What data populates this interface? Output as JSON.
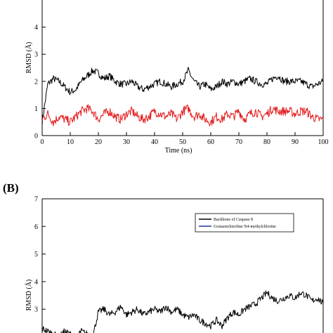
{
  "chart_data": [
    {
      "panel": "A",
      "panel_label": "",
      "type": "line",
      "xlabel": "Time (ns)",
      "ylabel": "RMSD (Å)",
      "xlim": [
        0,
        100
      ],
      "ylim": [
        0,
        5
      ],
      "xticks": [
        0,
        10,
        20,
        30,
        40,
        50,
        60,
        70,
        80,
        90,
        100
      ],
      "yticks": [
        0,
        1,
        2,
        3,
        4
      ],
      "grid": false,
      "series": [
        {
          "color": "#000000",
          "x": [
            0,
            2,
            4,
            6,
            8,
            10,
            12,
            14,
            16,
            18,
            20,
            22,
            24,
            26,
            28,
            30,
            32,
            34,
            36,
            38,
            40,
            42,
            44,
            46,
            48,
            50,
            52,
            54,
            56,
            58,
            60,
            62,
            64,
            66,
            68,
            70,
            72,
            74,
            76,
            78,
            80,
            82,
            84,
            86,
            88,
            90,
            92,
            94,
            96,
            98,
            100
          ],
          "y": [
            0.5,
            1.9,
            2.1,
            2.0,
            1.8,
            1.6,
            1.7,
            2.0,
            2.2,
            2.4,
            2.3,
            2.1,
            2.2,
            2.0,
            1.9,
            1.9,
            2.0,
            1.8,
            1.7,
            1.8,
            1.9,
            2.0,
            1.9,
            1.8,
            1.9,
            2.0,
            2.4,
            2.0,
            1.8,
            1.9,
            1.7,
            1.8,
            2.0,
            1.9,
            2.0,
            1.9,
            2.0,
            2.1,
            2.0,
            1.9,
            1.9,
            2.1,
            2.2,
            2.0,
            2.0,
            2.0,
            2.0,
            1.9,
            1.8,
            1.9,
            2.0
          ]
        },
        {
          "color": "#e31a1c",
          "x": [
            0,
            2,
            4,
            6,
            8,
            10,
            12,
            14,
            16,
            18,
            20,
            22,
            24,
            26,
            28,
            30,
            32,
            34,
            36,
            38,
            40,
            42,
            44,
            46,
            48,
            50,
            52,
            54,
            56,
            58,
            60,
            62,
            64,
            66,
            68,
            70,
            72,
            74,
            76,
            78,
            80,
            82,
            84,
            86,
            88,
            90,
            92,
            94,
            96,
            98,
            100
          ],
          "y": [
            0.6,
            0.8,
            0.5,
            0.7,
            0.6,
            0.5,
            0.7,
            0.9,
            1.0,
            0.9,
            0.6,
            0.8,
            0.9,
            0.7,
            0.6,
            0.8,
            0.9,
            0.7,
            0.6,
            0.7,
            0.9,
            0.8,
            0.7,
            0.8,
            0.6,
            0.9,
            1.0,
            0.7,
            0.8,
            0.6,
            0.5,
            0.7,
            0.6,
            0.8,
            0.7,
            0.9,
            0.6,
            0.8,
            0.9,
            0.7,
            0.8,
            1.0,
            0.9,
            0.9,
            0.9,
            0.8,
            0.9,
            0.9,
            0.7,
            0.6,
            0.6
          ]
        }
      ]
    },
    {
      "panel": "B",
      "panel_label": "(B)",
      "type": "line",
      "xlabel": "",
      "ylabel": "RMSD (Å)",
      "xlim": [
        0,
        100
      ],
      "ylim": [
        0,
        7
      ],
      "yticks": [
        3,
        4,
        5,
        6,
        7
      ],
      "grid": false,
      "legend_position": "top-right",
      "series": [
        {
          "name": "Backbone of Caspase 8",
          "color": "#000000",
          "x": [
            0,
            2,
            4,
            6,
            8,
            10,
            12,
            14,
            16,
            18,
            20,
            22,
            24,
            26,
            28,
            30,
            32,
            34,
            36,
            38,
            40,
            42,
            44,
            46,
            48,
            50,
            52,
            54,
            56,
            58,
            60,
            62,
            64,
            66,
            68,
            70,
            72,
            74,
            76,
            78,
            80,
            82,
            84,
            86,
            88,
            90,
            92,
            94,
            96,
            98,
            100
          ],
          "y": [
            2.3,
            2.2,
            2.1,
            2.0,
            2.2,
            2.1,
            2.0,
            2.2,
            2.1,
            2.0,
            2.9,
            3.0,
            2.8,
            2.9,
            3.1,
            2.8,
            2.9,
            3.0,
            2.8,
            2.9,
            3.0,
            2.9,
            3.1,
            2.9,
            3.0,
            2.8,
            2.7,
            2.8,
            2.6,
            2.5,
            2.4,
            2.6,
            2.4,
            2.7,
            2.9,
            2.8,
            3.0,
            3.1,
            3.2,
            3.4,
            3.6,
            3.4,
            3.3,
            3.4,
            3.5,
            3.4,
            3.6,
            3.5,
            3.3,
            3.4,
            3.2
          ]
        },
        {
          "name": "Goiasenchizoline N4-methylchlorine",
          "color": "#1f3a93",
          "x": [],
          "y": []
        }
      ]
    }
  ]
}
